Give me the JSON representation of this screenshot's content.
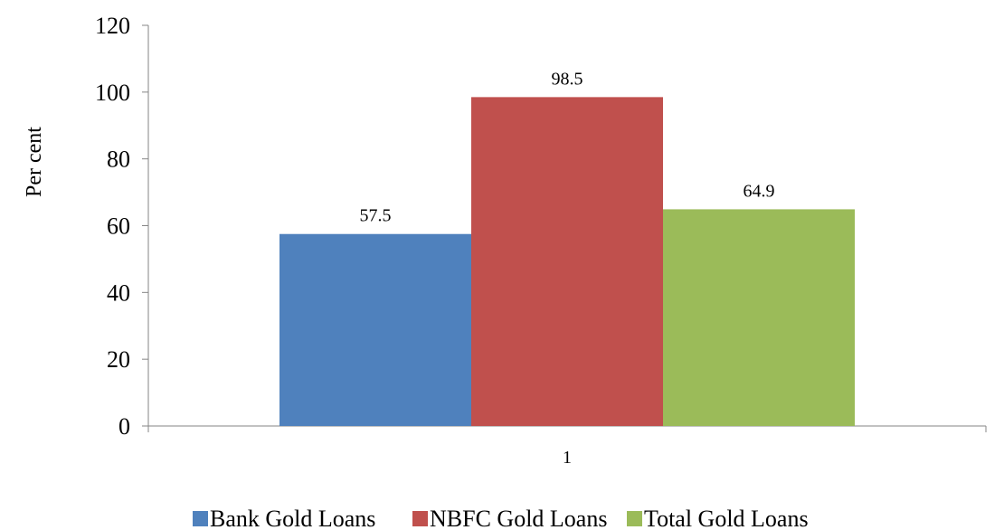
{
  "chart_data": {
    "type": "bar",
    "categories": [
      "1"
    ],
    "series": [
      {
        "name": "Bank Gold Loans",
        "values": [
          57.5
        ],
        "color": "#4F81BD"
      },
      {
        "name": "NBFC Gold Loans",
        "values": [
          98.5
        ],
        "color": "#C0504D"
      },
      {
        "name": "Total Gold Loans",
        "values": [
          64.9
        ],
        "color": "#9BBB59"
      }
    ],
    "title": "",
    "xlabel": "",
    "ylabel": "Per cent",
    "ylim": [
      0,
      120
    ],
    "yticks": [
      0,
      20,
      40,
      60,
      80,
      100,
      120
    ],
    "data_labels": [
      "57.5",
      "98.5",
      "64.9"
    ],
    "grid": false,
    "legend_position": "bottom"
  }
}
